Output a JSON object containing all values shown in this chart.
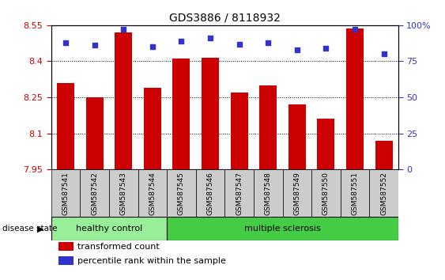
{
  "title": "GDS3886 / 8118932",
  "samples": [
    "GSM587541",
    "GSM587542",
    "GSM587543",
    "GSM587544",
    "GSM587545",
    "GSM587546",
    "GSM587547",
    "GSM587548",
    "GSM587549",
    "GSM587550",
    "GSM587551",
    "GSM587552"
  ],
  "bar_values": [
    8.31,
    8.25,
    8.52,
    8.29,
    8.41,
    8.415,
    8.27,
    8.3,
    8.22,
    8.16,
    8.535,
    8.07
  ],
  "percentile_values": [
    88,
    86,
    97,
    85,
    89,
    91,
    87,
    88,
    83,
    84,
    97,
    80
  ],
  "y_min": 7.95,
  "y_max": 8.55,
  "y_ticks": [
    7.95,
    8.1,
    8.25,
    8.4,
    8.55
  ],
  "y_tick_labels": [
    "7.95",
    "8.1",
    "8.25",
    "8.4",
    "8.55"
  ],
  "y2_ticks": [
    0,
    25,
    50,
    75,
    100
  ],
  "y2_tick_labels": [
    "0",
    "25",
    "50",
    "75",
    "100%"
  ],
  "bar_color": "#CC0000",
  "dot_color": "#3333CC",
  "grid_color": "#000000",
  "healthy_color": "#99EE99",
  "ms_color": "#44CC44",
  "healthy_samples": 4,
  "legend_bar_label": "transformed count",
  "legend_dot_label": "percentile rank within the sample",
  "disease_state_label": "disease state",
  "healthy_label": "healthy control",
  "ms_label": "multiple sclerosis",
  "xlabel_area_color": "#CCCCCC",
  "axis_label_color_left": "#CC0000",
  "axis_label_color_right": "#3333CC"
}
